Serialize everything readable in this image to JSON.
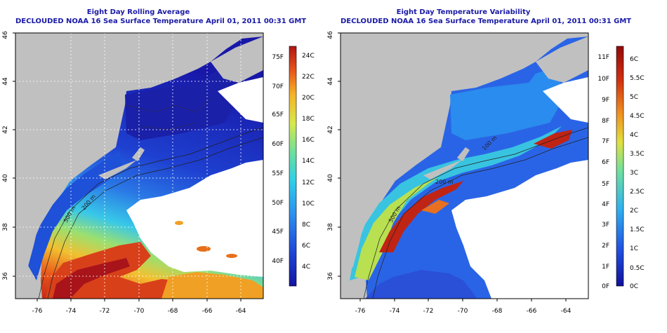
{
  "left_panel": {
    "title_line1": "Eight Day Rolling Average",
    "title_line2": "DECLOUDED NOAA 16 Sea Surface Temperature April 01, 2011 00:31 GMT",
    "x_ticks": [
      "-76",
      "-74",
      "-72",
      "-70",
      "-68",
      "-66",
      "-64"
    ],
    "y_ticks": [
      "36",
      "38",
      "40",
      "42",
      "44",
      "46"
    ],
    "colorbar_left_labels": [
      "40F",
      "45F",
      "50F",
      "55F",
      "60F",
      "65F",
      "70F",
      "75F"
    ],
    "colorbar_right_labels": [
      "4C",
      "6C",
      "8C",
      "10C",
      "12C",
      "14C",
      "16C",
      "18C",
      "20C",
      "22C",
      "24C"
    ],
    "contour_labels": [
      "500 m",
      "200 m"
    ]
  },
  "right_panel": {
    "title_line1": "Eight Day Temperature Variability",
    "title_line2": "DECLOUDED NOAA 16 Sea Surface Temperature April 01, 2011 00:31 GMT",
    "x_ticks": [
      "-76",
      "-74",
      "-72",
      "-70",
      "-68",
      "-66",
      "-64"
    ],
    "y_ticks": [
      "36",
      "38",
      "40",
      "42",
      "44",
      "46"
    ],
    "colorbar_left_labels": [
      "0F",
      "1F",
      "2F",
      "3F",
      "4F",
      "5F",
      "6F",
      "7F",
      "8F",
      "9F",
      "10F",
      "11F"
    ],
    "colorbar_right_labels": [
      "0C",
      "0.5C",
      "1C",
      "1.5C",
      "2C",
      "2.5C",
      "3C",
      "3.5C",
      "4C",
      "4.5C",
      "5C",
      "5.5C",
      "6C"
    ],
    "contour_labels": [
      "500 m",
      "200 m",
      "100 m"
    ]
  },
  "colors": {
    "title": "#1a1aa6",
    "land": "#c0c0c0",
    "sst_scale": [
      "#1414a0",
      "#1e46d8",
      "#2a90ef",
      "#2fd0e8",
      "#6ee09a",
      "#d8e84a",
      "#f6b324",
      "#e8541a",
      "#b01414"
    ],
    "variability_scale": [
      "#10109a",
      "#2050e0",
      "#30b0f0",
      "#70e0a0",
      "#e0e040",
      "#f09020",
      "#d03010",
      "#900a0a"
    ]
  }
}
